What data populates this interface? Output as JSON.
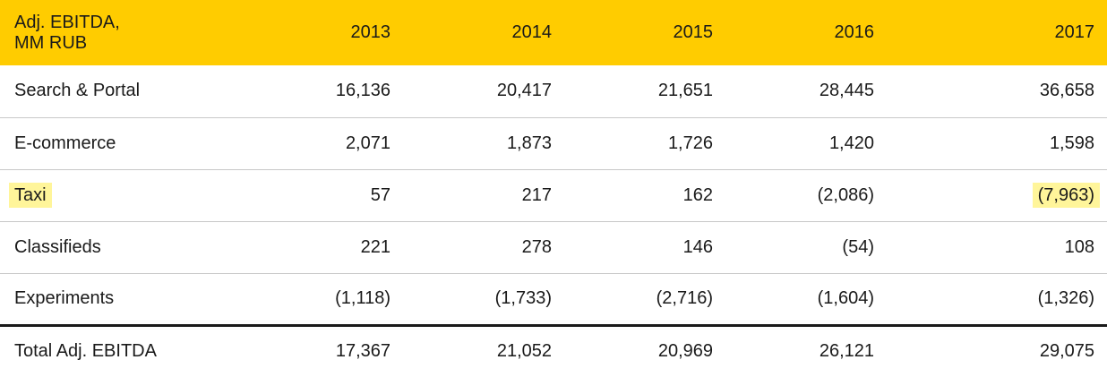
{
  "header": {
    "label": "Adj. EBITDA,\nMM RUB",
    "label_line1": "Adj. EBITDA,",
    "label_line2": "MM RUB",
    "years": [
      "2013",
      "2014",
      "2015",
      "2016",
      "2017"
    ]
  },
  "rows": [
    {
      "label": "Search & Portal",
      "values": [
        "16,136",
        "20,417",
        "21,651",
        "28,445",
        "36,658"
      ]
    },
    {
      "label": "E-commerce",
      "values": [
        "2,071",
        "1,873",
        "1,726",
        "1,420",
        "1,598"
      ]
    },
    {
      "label": "Taxi",
      "values": [
        "57",
        "217",
        "162",
        "(2,086)",
        "(7,963)"
      ]
    },
    {
      "label": "Classifieds",
      "values": [
        "221",
        "278",
        "146",
        "(54)",
        "108"
      ]
    },
    {
      "label": "Experiments",
      "values": [
        "(1,118)",
        "(1,733)",
        "(2,716)",
        "(1,604)",
        "(1,326)"
      ]
    }
  ],
  "total": {
    "label": "Total Adj. EBITDA",
    "values": [
      "17,367",
      "21,052",
      "20,969",
      "26,121",
      "29,075"
    ]
  },
  "colors": {
    "header_bg": "#ffcc00",
    "highlight": "#fff59a"
  }
}
